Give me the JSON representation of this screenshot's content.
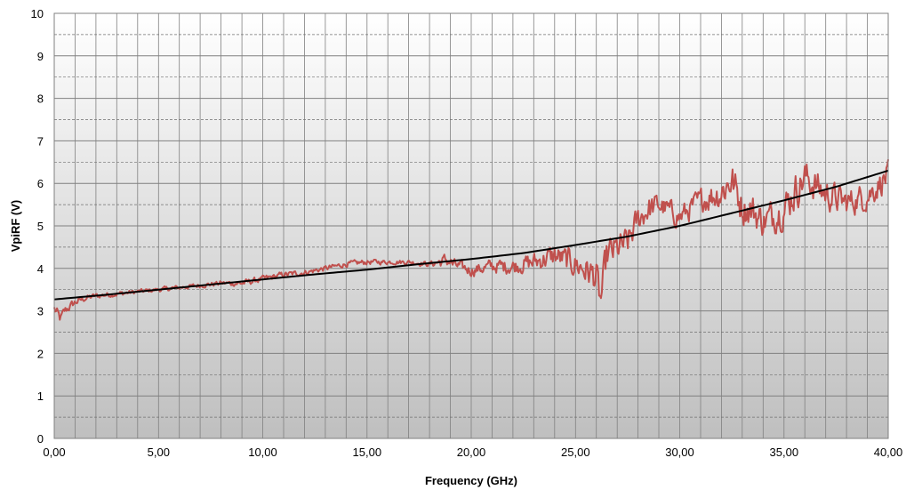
{
  "chart_data": {
    "type": "line",
    "title": "",
    "xlabel": "Frequency (GHz)",
    "ylabel": "VpiRF (V)",
    "xlim": [
      0,
      40
    ],
    "ylim": [
      0,
      10
    ],
    "x_ticks": [
      "0,00",
      "5,00",
      "10,00",
      "15,00",
      "20,00",
      "25,00",
      "30,00",
      "35,00",
      "40,00"
    ],
    "y_ticks": [
      "0",
      "1",
      "2",
      "3",
      "4",
      "5",
      "6",
      "7",
      "8",
      "9",
      "10"
    ],
    "x_minor_step": 1,
    "y_minor_step": 0.5,
    "grid": true,
    "legend": "none",
    "series": [
      {
        "style": "measured-noisy",
        "color": "#c0504d",
        "x": [
          0.0,
          0.3,
          0.5,
          1.0,
          1.5,
          2.0,
          2.5,
          3.0,
          4.0,
          5.0,
          6.0,
          7.0,
          8.0,
          9.0,
          10.0,
          11.0,
          12.0,
          13.0,
          14.0,
          15.0,
          16.0,
          17.0,
          18.0,
          18.9,
          19.1,
          20.0,
          21.0,
          22.0,
          23.0,
          24.0,
          25.0,
          25.7,
          26.0,
          26.2,
          26.5,
          27.0,
          27.5,
          28.0,
          28.5,
          29.0,
          30.0,
          31.0,
          32.0,
          32.5,
          33.0,
          33.5,
          34.0,
          35.0,
          35.5,
          36.0,
          37.0,
          38.0,
          39.0,
          40.0
        ],
        "y": [
          3.05,
          2.8,
          3.0,
          3.2,
          3.3,
          3.35,
          3.38,
          3.4,
          3.45,
          3.5,
          3.55,
          3.6,
          3.65,
          3.65,
          3.75,
          3.85,
          3.9,
          4.0,
          4.1,
          4.15,
          4.15,
          4.15,
          4.1,
          4.2,
          4.1,
          3.95,
          4.05,
          4.05,
          4.15,
          4.3,
          4.1,
          3.9,
          3.8,
          3.2,
          4.3,
          4.45,
          4.6,
          5.15,
          5.4,
          5.5,
          5.2,
          5.6,
          5.8,
          6.1,
          5.45,
          5.35,
          5.1,
          5.4,
          5.8,
          6.15,
          5.75,
          5.55,
          5.7,
          6.2
        ],
        "noise_amplitude": [
          0.15,
          0.15,
          0.12,
          0.1,
          0.08,
          0.08,
          0.07,
          0.07,
          0.06,
          0.06,
          0.06,
          0.06,
          0.07,
          0.08,
          0.08,
          0.08,
          0.07,
          0.07,
          0.07,
          0.07,
          0.06,
          0.06,
          0.07,
          0.2,
          0.15,
          0.15,
          0.18,
          0.2,
          0.25,
          0.3,
          0.35,
          0.4,
          0.45,
          0.4,
          0.45,
          0.4,
          0.4,
          0.35,
          0.35,
          0.3,
          0.3,
          0.3,
          0.45,
          0.5,
          0.45,
          0.45,
          0.4,
          0.45,
          0.5,
          0.45,
          0.4,
          0.35,
          0.35,
          0.35
        ]
      },
      {
        "style": "fit",
        "color": "#000000",
        "x": [
          0,
          2.5,
          5,
          7.5,
          10,
          12.5,
          15,
          17.5,
          20,
          22.5,
          25,
          27.5,
          30,
          32.5,
          35,
          37.5,
          40
        ],
        "y": [
          3.27,
          3.38,
          3.5,
          3.62,
          3.74,
          3.86,
          3.97,
          4.1,
          4.22,
          4.36,
          4.55,
          4.75,
          5.0,
          5.3,
          5.6,
          5.92,
          6.3
        ]
      }
    ]
  }
}
